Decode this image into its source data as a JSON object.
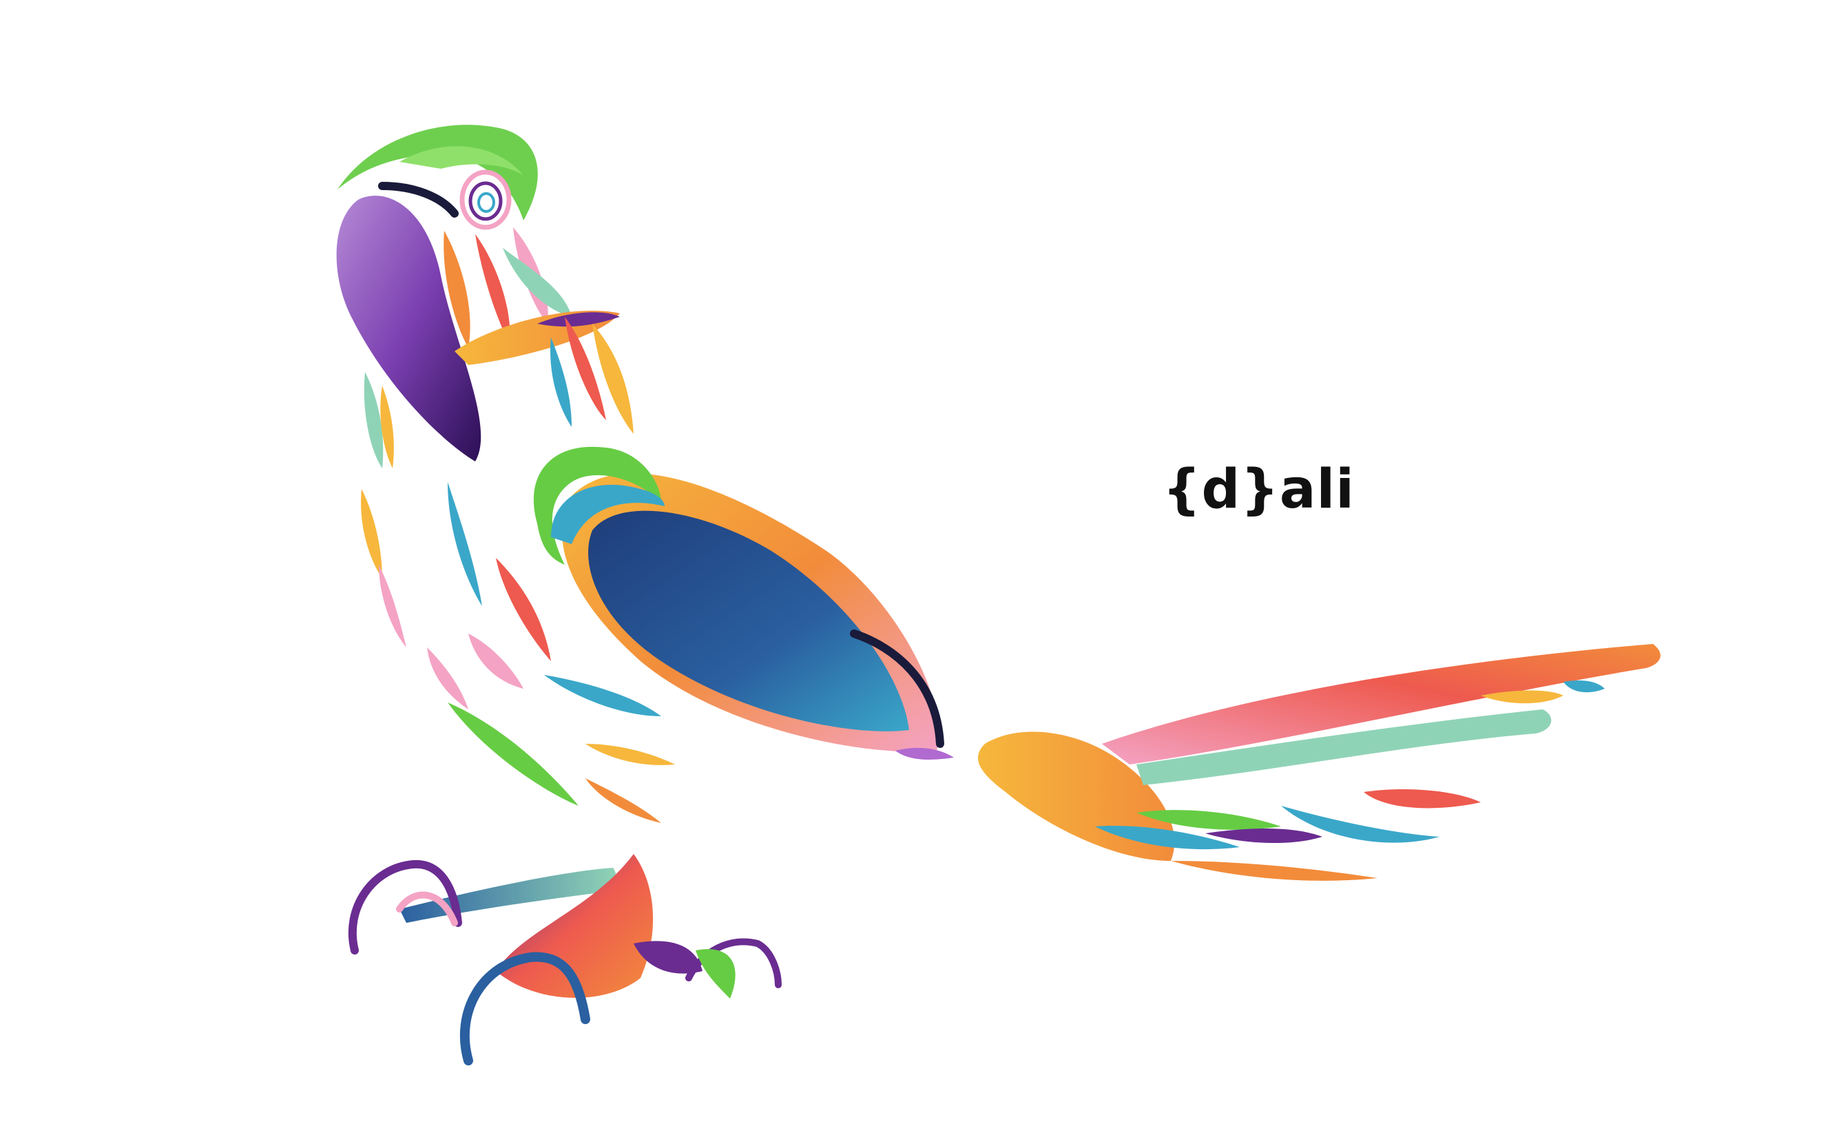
{
  "brand": {
    "wordmark": "{d}ali",
    "text_color": "#111111"
  },
  "illustration": {
    "subject": "parrot",
    "palette": {
      "green": "#66cc44",
      "purple": "#6a2c91",
      "navy": "#1f3d7a",
      "teal": "#3aa7c9",
      "orange": "#f28c3b",
      "yellow": "#f6b73c",
      "pink": "#f4a3c4",
      "coral": "#ee5a4f",
      "mint": "#8fd3b6",
      "dark": "#1a1a3a"
    }
  }
}
